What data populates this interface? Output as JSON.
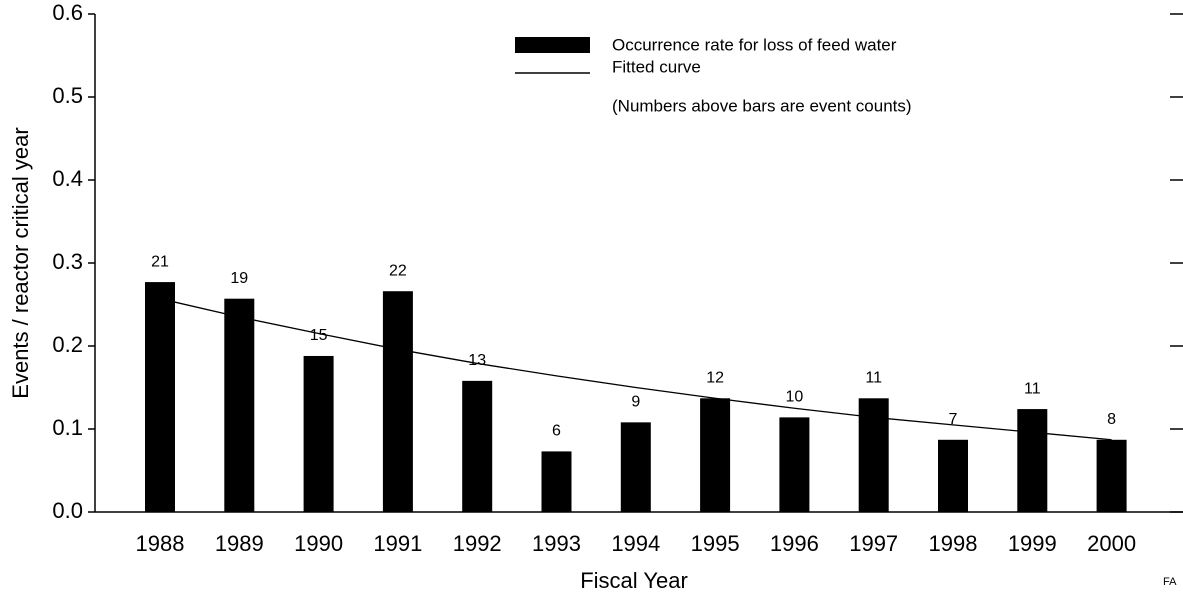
{
  "chart_data": {
    "type": "bar",
    "x_label": "Fiscal Year",
    "y_label": "Events / reactor critical year",
    "categories": [
      "1988",
      "1989",
      "1990",
      "1991",
      "1992",
      "1993",
      "1994",
      "1995",
      "1996",
      "1997",
      "1998",
      "1999",
      "2000"
    ],
    "series": [
      {
        "name": "Occurrence rate for loss of feed water",
        "color": "#000000",
        "values": [
          0.277,
          0.257,
          0.188,
          0.266,
          0.158,
          0.073,
          0.108,
          0.137,
          0.114,
          0.137,
          0.087,
          0.124,
          0.087
        ]
      },
      {
        "name": "Fitted curve",
        "color": "#000000",
        "type": "line",
        "values": [
          0.257,
          0.235,
          0.215,
          0.196,
          0.179,
          0.164,
          0.15,
          0.137,
          0.125,
          0.114,
          0.105,
          0.096,
          0.087
        ]
      }
    ],
    "event_counts": [
      21,
      19,
      15,
      22,
      13,
      6,
      9,
      12,
      10,
      11,
      7,
      11,
      8
    ],
    "annotation": "(Numbers above bars are event counts)",
    "footer_mark": "FA",
    "ylim": [
      0,
      0.6
    ],
    "yticks": [
      {
        "value": 0,
        "label": "0.0"
      },
      0.1,
      0.2,
      0.3,
      0.4,
      0.5,
      0.6
    ]
  }
}
